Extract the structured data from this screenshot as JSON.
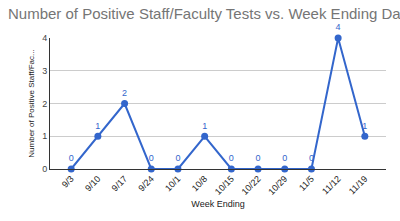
{
  "chart_data": {
    "type": "line",
    "title": "Number of Positive Staff/Faculty Tests vs. Week Ending Date",
    "x_label": "Week Ending",
    "y_label": "Number of Positive Staff/Fac...",
    "categories": [
      "9/3",
      "9/10",
      "9/17",
      "9/24",
      "10/1",
      "10/8",
      "10/15",
      "10/22",
      "10/29",
      "11/5",
      "11/12",
      "11/19"
    ],
    "values": [
      0,
      1,
      2,
      0,
      0,
      1,
      0,
      0,
      0,
      0,
      4,
      1
    ],
    "color": "#3366cc",
    "marker": "circle",
    "ylim": [
      0,
      4
    ],
    "yticks": [
      0,
      1,
      2,
      3,
      4
    ],
    "grid": true,
    "data_labels": true
  }
}
